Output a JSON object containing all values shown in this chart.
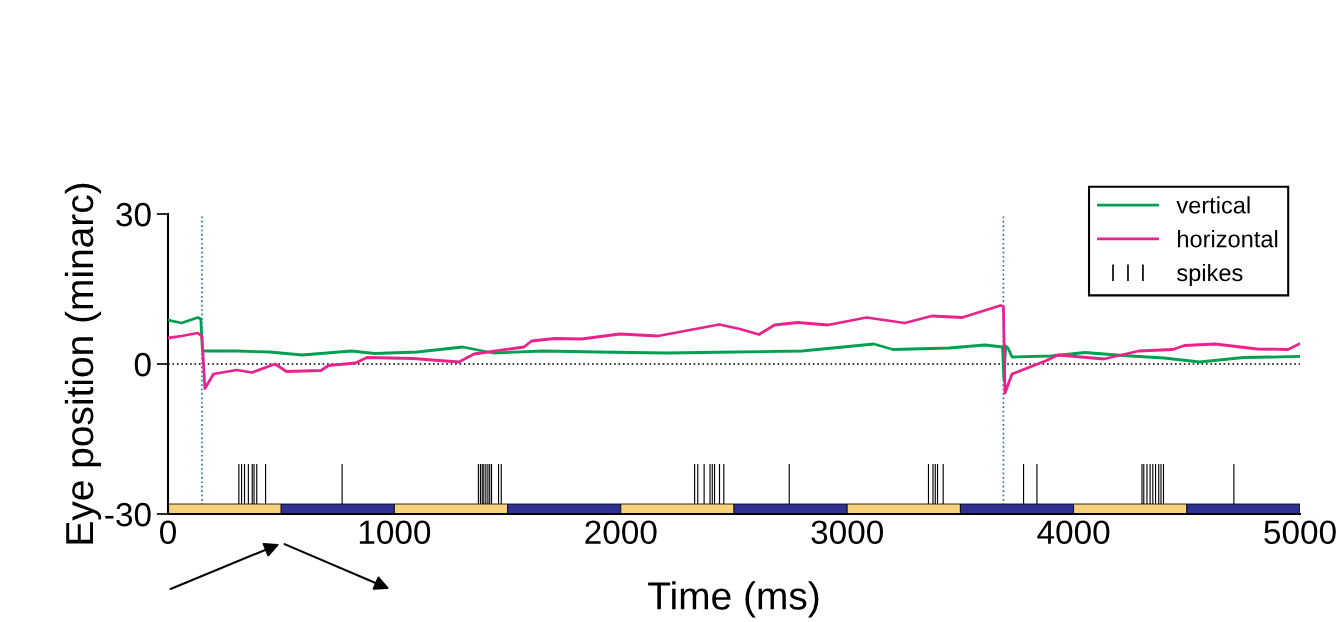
{
  "chart_data": {
    "type": "line",
    "xlabel": "Time (ms)",
    "ylabel": "Eye position (minarc)",
    "xlim": [
      0,
      5000
    ],
    "xticks": [
      0,
      1000,
      2000,
      3000,
      4000,
      5000
    ],
    "ylim": [
      -30,
      30
    ],
    "yticks": [
      -30,
      0,
      30
    ],
    "grid": false,
    "legend": "top right",
    "ref_lines": [
      {
        "axis": "y",
        "value": 0,
        "color": "#000000",
        "line_style": "dotted"
      },
      {
        "axis": "x",
        "value": 150,
        "color": "#1f6fb0",
        "line_style": "dotted"
      },
      {
        "axis": "x",
        "value": 3690,
        "color": "#1f6fb0",
        "line_style": "dotted"
      }
    ],
    "series": [
      {
        "name": "vertical",
        "color": "#00a050",
        "x": [
          0,
          60,
          132,
          145,
          152,
          300,
          450,
          592,
          811,
          912,
          1100,
          1302,
          1436,
          1656,
          1900,
          2200,
          2503,
          2800,
          3118,
          3202,
          3450,
          3608,
          3686,
          3692,
          3700,
          3710,
          3728,
          3900,
          4050,
          4218,
          4400,
          4557,
          4750,
          4996
        ],
        "values": [
          8.8,
          8.2,
          9.3,
          9.0,
          2.6,
          2.6,
          2.4,
          1.8,
          2.6,
          2.1,
          2.4,
          3.4,
          2.2,
          2.6,
          2.4,
          2.2,
          2.4,
          2.6,
          4.0,
          2.9,
          3.2,
          3.8,
          3.4,
          -3.0,
          3.6,
          3.2,
          1.4,
          1.6,
          2.3,
          1.7,
          1.2,
          0.4,
          1.3,
          1.5
        ]
      },
      {
        "name": "horizontal",
        "color": "#e8238c",
        "x": [
          0,
          60,
          132,
          150,
          163,
          201,
          303,
          371,
          473,
          523,
          676,
          709,
          828,
          879,
          1082,
          1285,
          1352,
          1572,
          1606,
          1708,
          1826,
          1995,
          2164,
          2435,
          2526,
          2610,
          2679,
          2780,
          2915,
          3085,
          3254,
          3373,
          3508,
          3677,
          3690,
          3697,
          3728,
          3880,
          3931,
          4134,
          4287,
          4439,
          4489,
          4626,
          4811,
          4947,
          4996
        ],
        "values": [
          5.2,
          5.6,
          6.2,
          5.5,
          -4.9,
          -2.0,
          -1.2,
          -1.7,
          0.0,
          -1.5,
          -1.3,
          -0.3,
          0.2,
          1.3,
          1.1,
          0.4,
          2.0,
          3.4,
          4.6,
          5.1,
          5.0,
          6.0,
          5.6,
          7.9,
          7.0,
          5.9,
          7.8,
          8.3,
          7.8,
          9.3,
          8.2,
          9.6,
          9.3,
          11.7,
          11.5,
          -5.8,
          -2.0,
          0.7,
          1.8,
          1.0,
          2.6,
          2.9,
          3.7,
          4.0,
          3.0,
          2.9,
          4.0
        ]
      },
      {
        "name": "spikes",
        "type": "bar",
        "color": "#000000",
        "x": [
          313,
          325,
          338,
          355,
          372,
          380,
          392,
          431,
          769,
          1371,
          1380,
          1388,
          1395,
          1404,
          1413,
          1421,
          1429,
          1460,
          1472,
          2326,
          2340,
          2368,
          2394,
          2404,
          2414,
          2436,
          2455,
          2744,
          3359,
          3379,
          3389,
          3399,
          3424,
          3779,
          3838,
          4302,
          4310,
          4324,
          4338,
          4350,
          4362,
          4376,
          4386,
          4397,
          4708
        ],
        "values": [
          8,
          8,
          8,
          8,
          8,
          8,
          8,
          8,
          8,
          8,
          8,
          8,
          8,
          8,
          8,
          8,
          8,
          8,
          8,
          8,
          8,
          8,
          8,
          8,
          8,
          8,
          8,
          8,
          8,
          8,
          8,
          8,
          8,
          8,
          8,
          8,
          8,
          8,
          8,
          8,
          8,
          8,
          8,
          8,
          8
        ],
        "base": [
          -28,
          -28,
          -28,
          -28,
          -28,
          -28,
          -28,
          -28,
          -28,
          -28,
          -28,
          -28,
          -28,
          -28,
          -28,
          -28,
          -28,
          -28,
          -28,
          -28,
          -28,
          -28,
          -28,
          -28,
          -28,
          -28,
          -28,
          -28,
          -28,
          -28,
          -28,
          -28,
          -28,
          -28,
          -28,
          -28,
          -28,
          -28,
          -28,
          -28,
          -28,
          -28,
          -28,
          -28,
          -28
        ]
      },
      {
        "type": "bar",
        "x": [
          250,
          750,
          1250,
          1750,
          2250,
          2750,
          3250,
          3750,
          4250,
          4750
        ],
        "values": [
          2,
          2,
          2,
          2,
          2,
          2,
          2,
          2,
          2,
          2
        ],
        "base": [
          -30,
          -30,
          -30,
          -30,
          -30,
          -30,
          -30,
          -30,
          -30,
          -30
        ],
        "colors": [
          "#f9d27e",
          "#2e3192",
          "#f9d27e",
          "#2e3192",
          "#f9d27e",
          "#2e3192",
          "#f9d27e",
          "#2e3192",
          "#f9d27e",
          "#2e3192"
        ]
      }
    ]
  }
}
